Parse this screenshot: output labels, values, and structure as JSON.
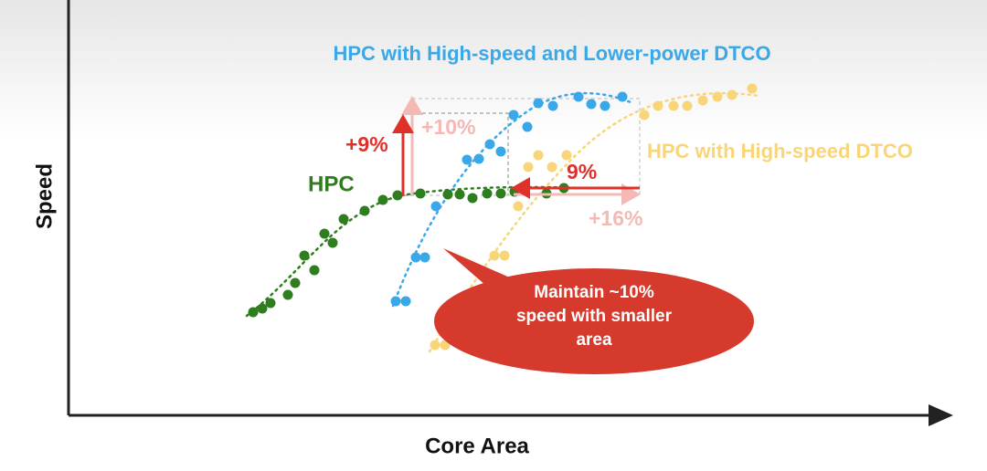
{
  "labels": {
    "y_axis": "Speed",
    "x_axis": "Core Area",
    "lower_power": "HPC with High-speed and Lower-power DTCO",
    "high_speed": "HPC with High-speed DTCO",
    "hpc": "HPC",
    "plus9": "+9%",
    "plus10": "+10%",
    "nine": "9%",
    "plus16": "+16%",
    "callout": "Maintain ~10% speed with smaller area"
  }
}
